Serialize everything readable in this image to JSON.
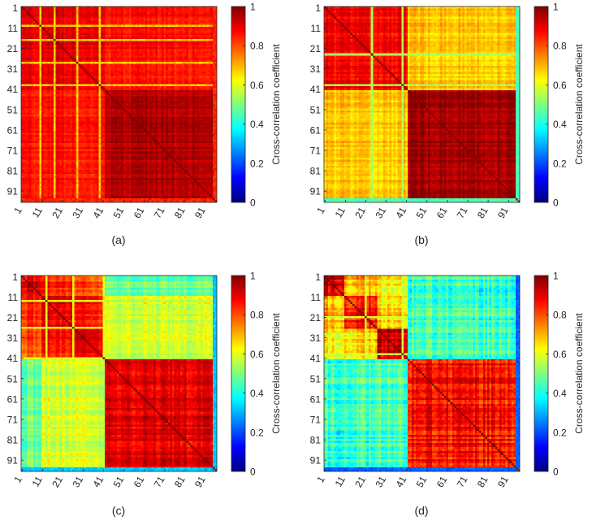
{
  "figure": {
    "description_free": true
  },
  "colorbar": {
    "label": "Cross-correlation coefficient",
    "ticks": [
      "0",
      "0.2",
      "0.4",
      "0.6",
      "0.8",
      "1"
    ],
    "tick_values": [
      0,
      0.2,
      0.4,
      0.6,
      0.8,
      1
    ],
    "colormap": "jet",
    "colors": [
      "#00007f",
      "#0000ff",
      "#007fff",
      "#00ffff",
      "#7fff7f",
      "#ffff00",
      "#ff7f00",
      "#ff0000",
      "#7f0000"
    ]
  },
  "chart_data": [
    {
      "type": "heatmap",
      "panel_label": "(a)",
      "size": 96,
      "xticks": [
        "1",
        "11",
        "21",
        "31",
        "41",
        "51",
        "61",
        "71",
        "81",
        "91"
      ],
      "yticks": [
        "1",
        "11",
        "21",
        "31",
        "41",
        "51",
        "61",
        "71",
        "81",
        "91"
      ],
      "clim": [
        0,
        1
      ],
      "groups": [
        [
          1,
          41
        ],
        [
          42,
          96
        ]
      ],
      "block_values": [
        [
          0.9,
          0.86
        ],
        [
          0.86,
          0.95
        ]
      ],
      "diag": 1,
      "variation": 0.035,
      "anomaly_indices": [
        9,
        16,
        27,
        38
      ],
      "anomaly_value": 0.68,
      "edge_value": 0.84
    },
    {
      "type": "heatmap",
      "panel_label": "(b)",
      "size": 96,
      "xticks": [
        "1",
        "11",
        "21",
        "31",
        "41",
        "51",
        "61",
        "71",
        "81",
        "91"
      ],
      "yticks": [
        "1",
        "11",
        "21",
        "31",
        "41",
        "51",
        "61",
        "71",
        "81",
        "91"
      ],
      "clim": [
        0,
        1
      ],
      "groups": [
        [
          1,
          41
        ],
        [
          42,
          96
        ]
      ],
      "block_values": [
        [
          0.88,
          0.68
        ],
        [
          0.68,
          0.97
        ]
      ],
      "diag": 1,
      "variation": 0.04,
      "anomaly_indices": [
        23,
        38
      ],
      "anomaly_value": 0.55,
      "edge_value": 0.45
    },
    {
      "type": "heatmap",
      "panel_label": "(c)",
      "size": 96,
      "xticks": [
        "1",
        "11",
        "21",
        "31",
        "41",
        "51",
        "61",
        "71",
        "81",
        "91"
      ],
      "yticks": [
        "1",
        "11",
        "21",
        "31",
        "41",
        "51",
        "61",
        "71",
        "81",
        "91"
      ],
      "clim": [
        0,
        1
      ],
      "groups": [
        [
          1,
          10
        ],
        [
          11,
          26
        ],
        [
          27,
          41
        ],
        [
          42,
          96
        ]
      ],
      "block_values": [
        [
          0.92,
          0.85,
          0.8,
          0.48
        ],
        [
          0.85,
          0.9,
          0.86,
          0.58
        ],
        [
          0.8,
          0.86,
          0.9,
          0.58
        ],
        [
          0.48,
          0.58,
          0.58,
          0.9
        ]
      ],
      "diag": 1,
      "variation": 0.05,
      "anomaly_indices": [
        12,
        25,
        40
      ],
      "anomaly_value": 0.62,
      "edge_value": 0.32
    },
    {
      "type": "heatmap",
      "panel_label": "(d)",
      "size": 96,
      "xticks": [
        "1",
        "11",
        "21",
        "31",
        "41",
        "51",
        "61",
        "71",
        "81",
        "91"
      ],
      "yticks": [
        "1",
        "11",
        "21",
        "31",
        "41",
        "51",
        "61",
        "71",
        "81",
        "91"
      ],
      "clim": [
        0,
        1
      ],
      "groups": [
        [
          1,
          10
        ],
        [
          11,
          26
        ],
        [
          27,
          41
        ],
        [
          42,
          96
        ]
      ],
      "block_values": [
        [
          0.92,
          0.7,
          0.62,
          0.42
        ],
        [
          0.7,
          0.86,
          0.66,
          0.44
        ],
        [
          0.62,
          0.66,
          0.92,
          0.44
        ],
        [
          0.42,
          0.44,
          0.44,
          0.86
        ]
      ],
      "diag": 1,
      "variation": 0.07,
      "anomaly_indices": [
        20,
        38
      ],
      "anomaly_value": 0.58,
      "edge_value": 0.22
    }
  ]
}
